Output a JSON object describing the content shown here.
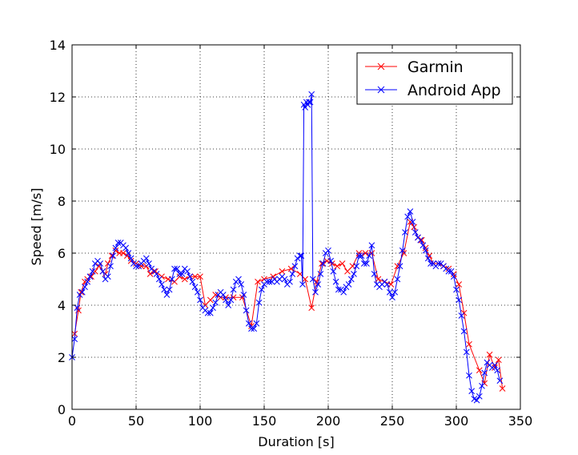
{
  "chart_data": {
    "type": "line",
    "title": "",
    "xlabel": "Duration [s]",
    "ylabel": "Speed [m/s]",
    "xlim": [
      0,
      350
    ],
    "ylim": [
      0,
      14
    ],
    "xticks": [
      0,
      50,
      100,
      150,
      200,
      250,
      300,
      350
    ],
    "yticks": [
      0,
      2,
      4,
      6,
      8,
      10,
      12,
      14
    ],
    "grid": true,
    "legend_position": "top-right",
    "series": [
      {
        "name": "Garmin",
        "color": "#ff0000",
        "marker": "x",
        "x": [
          2,
          5,
          7,
          10,
          12,
          15,
          18,
          21,
          24,
          26,
          28,
          31,
          34,
          37,
          40,
          43,
          46,
          50,
          54,
          58,
          61,
          65,
          70,
          75,
          80,
          84,
          88,
          92,
          96,
          100,
          104,
          108,
          112,
          116,
          120,
          126,
          133,
          140,
          145,
          150,
          157,
          164,
          171,
          178,
          182,
          187,
          191,
          195,
          199,
          203,
          207,
          211,
          215,
          219,
          224,
          229,
          234,
          239,
          244,
          249,
          254,
          259,
          264,
          267,
          270,
          273,
          276,
          279,
          282,
          286,
          290,
          294,
          298,
          302,
          306,
          310,
          318,
          322,
          326,
          330,
          333,
          336
        ],
        "y": [
          2.9,
          3.8,
          4.5,
          4.9,
          5.0,
          5.1,
          5.3,
          5.5,
          5.3,
          5.2,
          5.6,
          5.9,
          6.1,
          6.0,
          6.0,
          5.9,
          5.7,
          5.6,
          5.5,
          5.5,
          5.2,
          5.3,
          5.1,
          5.0,
          4.9,
          5.1,
          5.0,
          5.1,
          5.1,
          5.1,
          4.0,
          4.2,
          4.4,
          4.3,
          4.3,
          4.3,
          4.3,
          3.2,
          4.9,
          5.0,
          5.1,
          5.3,
          5.4,
          5.2,
          5.0,
          3.9,
          4.9,
          5.6,
          5.7,
          5.6,
          5.5,
          5.6,
          5.3,
          5.5,
          6.0,
          6.0,
          6.0,
          5.0,
          4.9,
          4.8,
          5.5,
          6.0,
          7.2,
          7.0,
          6.6,
          6.5,
          6.2,
          5.9,
          5.6,
          5.6,
          5.5,
          5.4,
          5.2,
          4.8,
          3.7,
          2.5,
          1.5,
          1.0,
          2.1,
          1.6,
          1.9,
          0.8
        ]
      },
      {
        "name": "Android App",
        "color": "#0000ff",
        "marker": "x",
        "x": [
          0,
          2,
          4,
          6,
          8,
          10,
          12,
          14,
          16,
          18,
          20,
          22,
          24,
          26,
          28,
          30,
          32,
          34,
          36,
          38,
          40,
          42,
          44,
          46,
          48,
          50,
          52,
          54,
          56,
          58,
          60,
          62,
          64,
          66,
          68,
          70,
          72,
          74,
          76,
          78,
          80,
          82,
          84,
          86,
          88,
          90,
          92,
          94,
          96,
          98,
          100,
          102,
          104,
          106,
          108,
          110,
          112,
          114,
          116,
          118,
          120,
          122,
          124,
          126,
          128,
          130,
          132,
          134,
          136,
          138,
          140,
          142,
          144,
          146,
          148,
          150,
          152,
          154,
          156,
          158,
          160,
          162,
          164,
          166,
          168,
          170,
          172,
          174,
          176,
          178,
          179,
          180,
          181,
          182,
          183,
          184,
          185,
          186,
          187,
          188,
          190,
          192,
          194,
          196,
          198,
          200,
          202,
          204,
          206,
          208,
          210,
          212,
          214,
          216,
          218,
          220,
          222,
          224,
          226,
          228,
          230,
          232,
          234,
          236,
          238,
          240,
          242,
          244,
          246,
          248,
          250,
          252,
          254,
          256,
          258,
          260,
          262,
          264,
          266,
          268,
          270,
          272,
          274,
          276,
          278,
          280,
          282,
          284,
          286,
          288,
          290,
          292,
          294,
          296,
          298,
          300,
          302,
          304,
          306,
          308,
          310,
          312,
          314,
          316,
          318,
          320,
          322,
          324,
          326,
          328,
          330,
          332,
          334
        ],
        "y": [
          2.0,
          2.7,
          3.9,
          4.4,
          4.5,
          4.7,
          4.9,
          5.1,
          5.3,
          5.6,
          5.7,
          5.6,
          5.3,
          5.0,
          5.1,
          5.5,
          5.9,
          6.2,
          6.4,
          6.4,
          6.3,
          6.2,
          6.0,
          5.8,
          5.6,
          5.5,
          5.5,
          5.6,
          5.7,
          5.8,
          5.6,
          5.4,
          5.3,
          5.2,
          5.0,
          4.8,
          4.6,
          4.4,
          4.6,
          5.0,
          5.4,
          5.4,
          5.2,
          5.2,
          5.4,
          5.3,
          5.1,
          4.9,
          4.7,
          4.5,
          4.2,
          3.9,
          3.8,
          3.7,
          3.7,
          3.9,
          4.1,
          4.4,
          4.5,
          4.4,
          4.2,
          4.0,
          4.2,
          4.6,
          4.9,
          5.0,
          4.8,
          4.4,
          3.8,
          3.3,
          3.1,
          3.1,
          3.3,
          4.1,
          4.6,
          4.8,
          4.9,
          4.9,
          4.9,
          5.0,
          4.9,
          5.0,
          5.1,
          5.0,
          4.8,
          4.9,
          5.2,
          5.5,
          5.8,
          5.9,
          5.9,
          4.8,
          11.7,
          11.6,
          11.8,
          11.7,
          11.8,
          11.8,
          12.1,
          5.0,
          4.5,
          4.8,
          5.2,
          5.6,
          6.0,
          6.1,
          5.7,
          5.3,
          4.9,
          4.6,
          4.6,
          4.5,
          4.7,
          4.8,
          5.0,
          5.2,
          5.5,
          5.9,
          5.9,
          5.6,
          5.6,
          5.9,
          6.3,
          5.2,
          4.8,
          4.7,
          4.8,
          4.9,
          4.8,
          4.5,
          4.3,
          4.5,
          5.0,
          5.5,
          6.1,
          6.8,
          7.4,
          7.6,
          7.2,
          6.8,
          6.6,
          6.5,
          6.3,
          6.1,
          5.8,
          5.6,
          5.6,
          5.5,
          5.6,
          5.6,
          5.5,
          5.4,
          5.3,
          5.3,
          5.1,
          4.6,
          4.2,
          3.6,
          3.0,
          2.2,
          1.3,
          0.7,
          0.4,
          0.35,
          0.5,
          0.9,
          1.4,
          1.8,
          1.7,
          1.6,
          1.7,
          1.5,
          1.1
        ]
      }
    ]
  }
}
